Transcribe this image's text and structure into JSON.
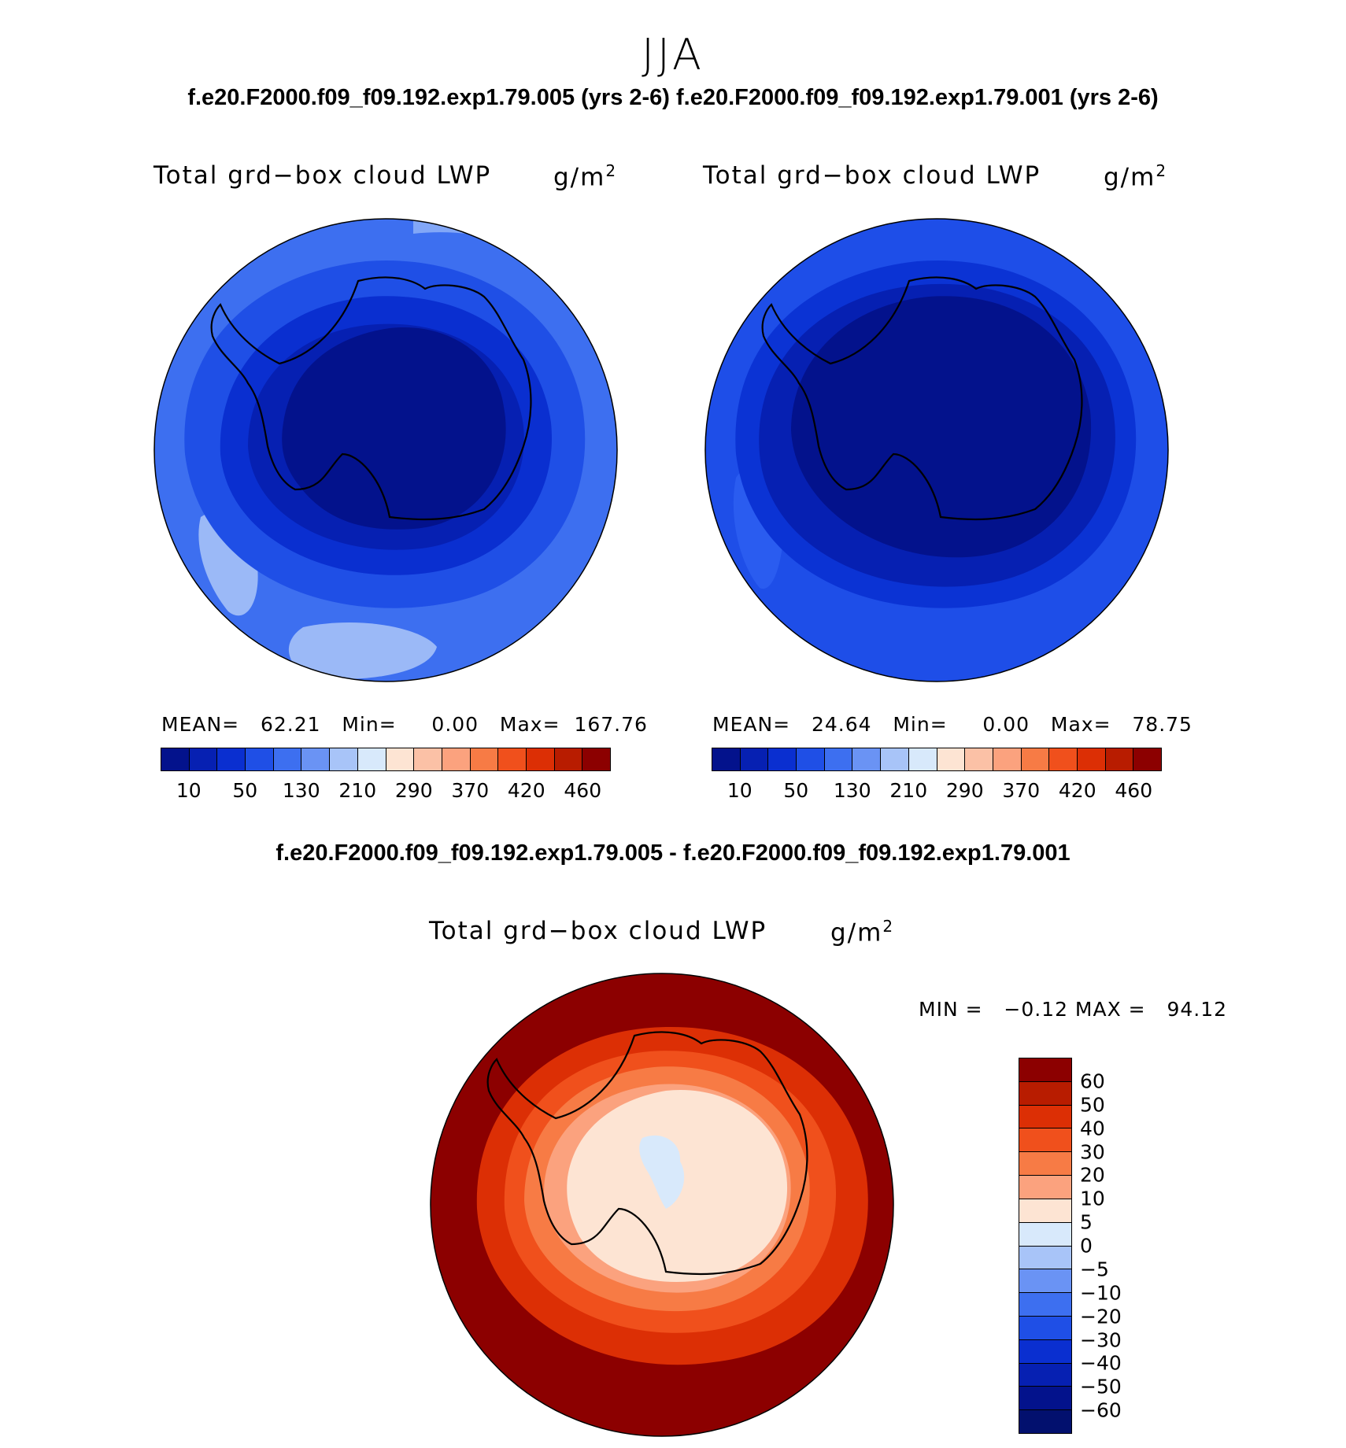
{
  "figure": {
    "season": "JJA",
    "runs_line": "f.e20.F2000.f09_f09.192.exp1.79.005 (yrs 2-6) f.e20.F2000.f09_f09.192.exp1.79.001 (yrs 2-6)",
    "diff_title": "f.e20.F2000.f09_f09.192.exp1.79.005 - f.e20.F2000.f09_f09.192.exp1.79.001"
  },
  "panels": [
    {
      "title": "Total grd−box cloud LWP",
      "units_base": "g/m",
      "units_exp": "2",
      "stats": "MEAN=   62.21   Min=     0.00   Max=  167.76",
      "fills": {
        "outer": "#3d6ff0",
        "ring1": "#1f4fe6",
        "ring2": "#0a2fd0",
        "ring3": "#0620b2",
        "core": "#03128c",
        "light": "#82a7f7",
        "pale": "#9bb9f7"
      }
    },
    {
      "title": "Total grd−box cloud LWP",
      "units_base": "g/m",
      "units_exp": "2",
      "stats": "MEAN=   24.64   Min=     0.00   Max=   78.75",
      "fills": {
        "outer": "#1e4ee8",
        "ring1": "#0b33d4",
        "ring2": "#0620b2",
        "core": "#03128c",
        "light": "#2a5cf0"
      }
    },
    {
      "title": "Total grd−box cloud LWP",
      "units_base": "g/m",
      "units_exp": "2",
      "stats": "MIN =   −0.12 MAX =   94.12",
      "fills": {
        "outer": "#8c0000",
        "ring1": "#dc2f05",
        "ring2": "#f0501c",
        "ring3": "#f77b45",
        "ring4": "#fba27e",
        "core": "#fde4d3",
        "ice": "#d8e9fb"
      }
    }
  ],
  "colorbar_abs": {
    "colors": [
      "#03128c",
      "#0620b2",
      "#0a2fd0",
      "#1f4fe6",
      "#3d6ff0",
      "#6a93f4",
      "#a8c4f8",
      "#d8e9fb",
      "#fde4d3",
      "#fbc1a6",
      "#fba27e",
      "#f77b45",
      "#f0501c",
      "#dc2f05",
      "#b81c00",
      "#8c0000"
    ],
    "labels": [
      "10",
      "50",
      "130",
      "210",
      "290",
      "370",
      "420",
      "460"
    ]
  },
  "colorbar_diff": {
    "colors": [
      "#8c0000",
      "#b81c00",
      "#dc2f05",
      "#f0501c",
      "#f77b45",
      "#fba27e",
      "#fde4d3",
      "#d8e9fb",
      "#a8c4f8",
      "#6a93f4",
      "#3d6ff0",
      "#1f4fe6",
      "#0a2fd0",
      "#0620b2",
      "#03128c"
    ],
    "labels": [
      "60",
      "50",
      "40",
      "30",
      "20",
      "10",
      "5",
      "0",
      "−5",
      "−10",
      "−20",
      "−30",
      "−40",
      "−50",
      "−60"
    ]
  }
}
